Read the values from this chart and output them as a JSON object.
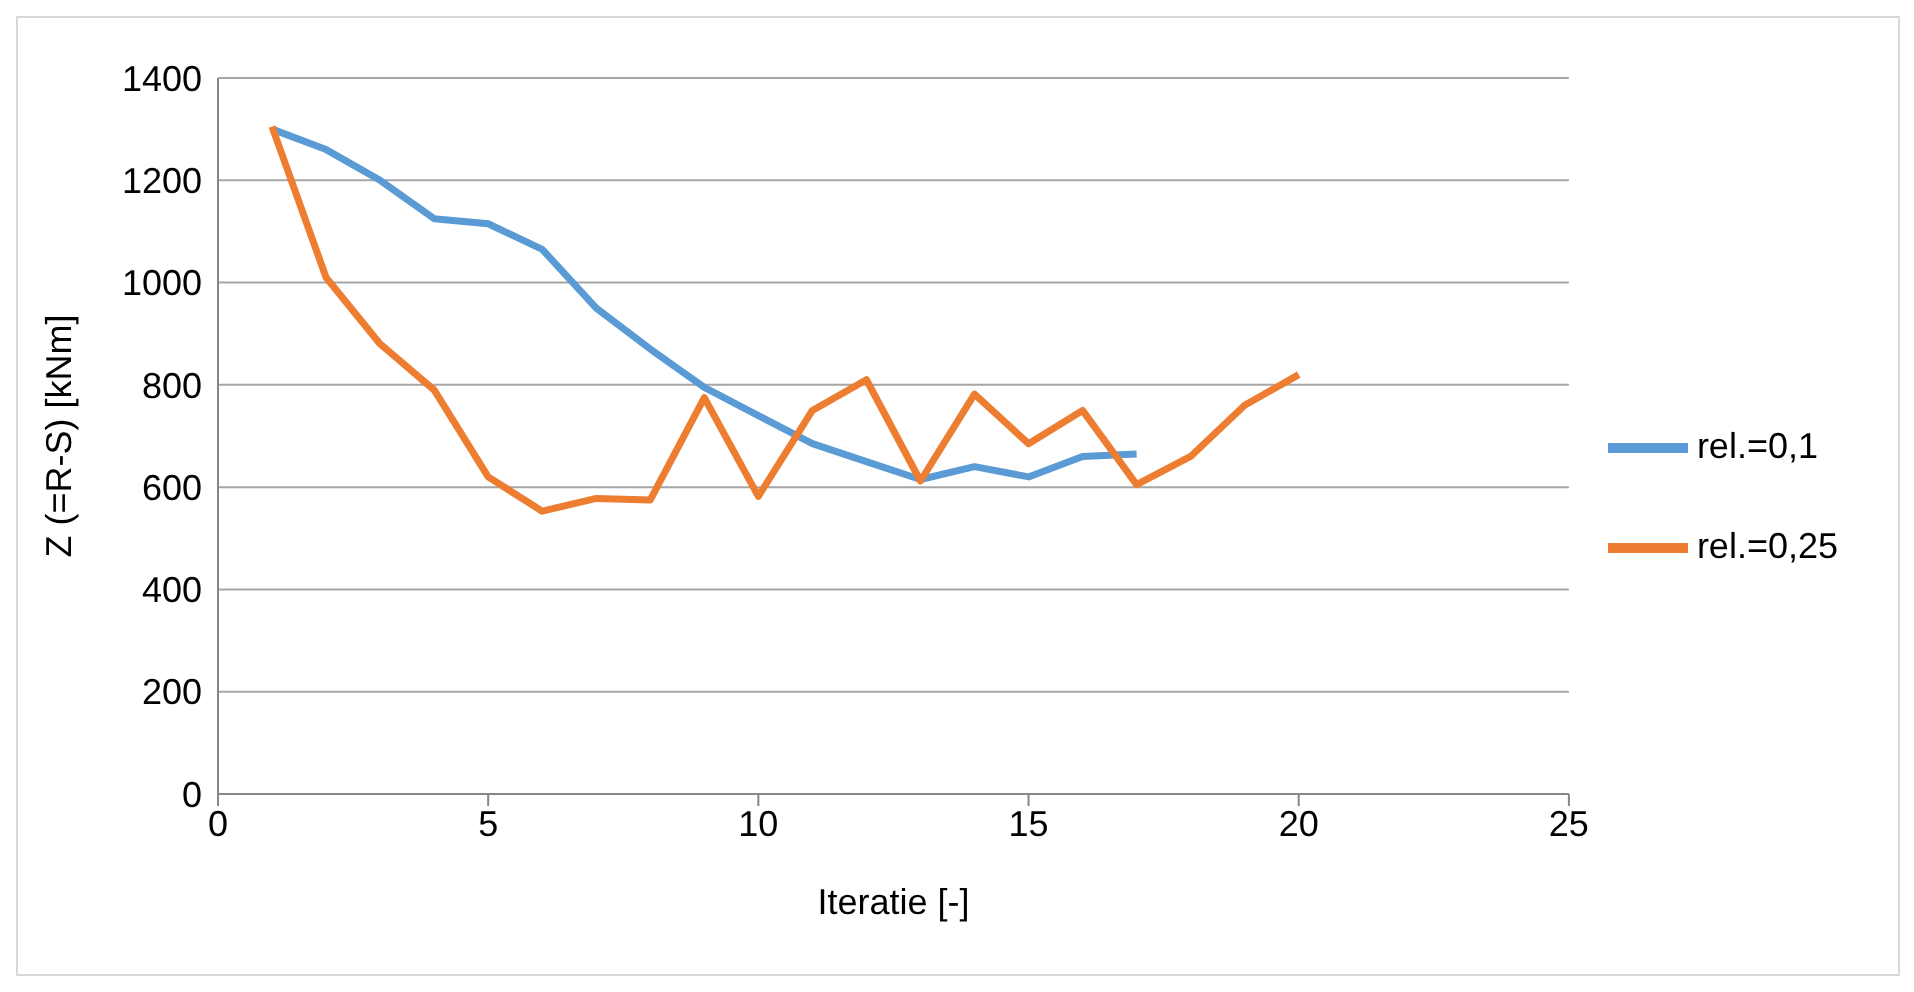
{
  "chart_data": {
    "type": "line",
    "xlabel": "Iteratie [-]",
    "ylabel": "Z (=R-S) [kNm]",
    "x": [
      1,
      2,
      3,
      4,
      5,
      6,
      7,
      8,
      9,
      10,
      11,
      12,
      13,
      14,
      15,
      16,
      17,
      18,
      19,
      20
    ],
    "series": [
      {
        "name": "rel.=0,1",
        "color": "#5b9bd5",
        "values": [
          1300,
          1260,
          1200,
          1125,
          1115,
          1065,
          950,
          870,
          795,
          740,
          685,
          650,
          615,
          640,
          620,
          660,
          665,
          null,
          null,
          null
        ]
      },
      {
        "name": "rel.=0,25",
        "color": "#ed7d31",
        "values": [
          1305,
          1010,
          880,
          790,
          620,
          553,
          578,
          575,
          775,
          582,
          750,
          810,
          612,
          782,
          685,
          750,
          605,
          660,
          760,
          820
        ]
      }
    ],
    "xlim": [
      0,
      25
    ],
    "xticks": [
      0,
      5,
      10,
      15,
      20,
      25
    ],
    "ylim": [
      0,
      1400
    ],
    "yticks": [
      0,
      200,
      400,
      600,
      800,
      1000,
      1200,
      1400
    ],
    "grid": "y",
    "legend": "right",
    "marker": "none",
    "line_style": "solid"
  }
}
